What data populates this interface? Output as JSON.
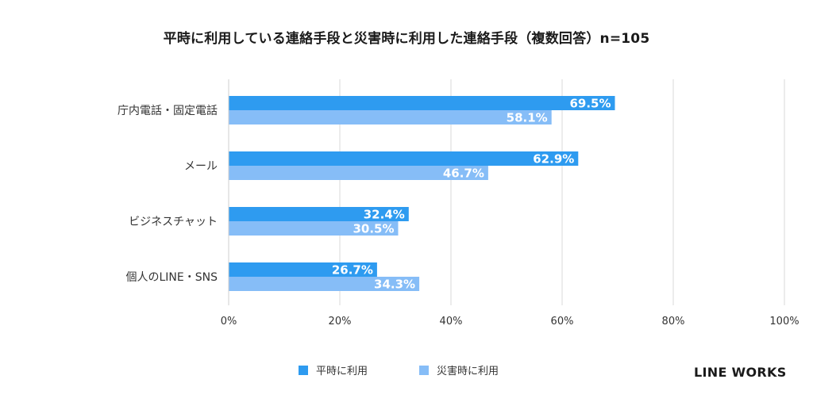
{
  "chart_data": {
    "type": "bar",
    "orientation": "horizontal",
    "title": "平時に利用している連絡手段と災害時に利用した連絡手段（複数回答）n=105",
    "categories": [
      "庁内電話・固定電話",
      "メール",
      "ビジネスチャット",
      "個人のLINE・SNS"
    ],
    "series": [
      {
        "name": "平時に利用",
        "values": [
          69.5,
          62.9,
          32.4,
          26.7
        ],
        "color": "#2e9bf0"
      },
      {
        "name": "災害時に利用",
        "values": [
          58.1,
          46.7,
          30.5,
          34.3
        ],
        "color": "#86bdf7"
      }
    ],
    "data_labels": [
      [
        "69.5%",
        "62.9%",
        "32.4%",
        "26.7%"
      ],
      [
        "58.1%",
        "46.7%",
        "30.5%",
        "34.3%"
      ]
    ],
    "xlim": [
      0,
      100
    ],
    "x_ticks": [
      0,
      20,
      40,
      60,
      80,
      100
    ],
    "x_tick_labels": [
      "0%",
      "20%",
      "40%",
      "60%",
      "80%",
      "100%"
    ],
    "grid": true,
    "legend_position": "bottom"
  },
  "brand": "LINE WORKS"
}
